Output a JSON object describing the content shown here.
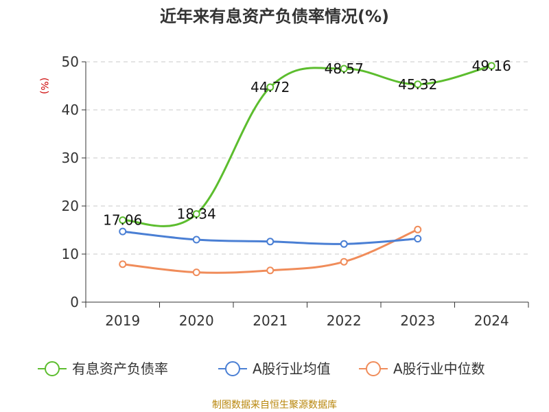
{
  "chart_data": {
    "type": "line",
    "title": "近年来有息资产负债率情况(%)",
    "y_unit": "(%)",
    "categories": [
      "2019",
      "2020",
      "2021",
      "2022",
      "2023",
      "2024"
    ],
    "ylim": [
      0,
      50
    ],
    "y_ticks": [
      0,
      10,
      20,
      30,
      40,
      50
    ],
    "grid": true,
    "legend_position": "bottom",
    "series": [
      {
        "name": "有息资产负债率",
        "color": "#5cbd2e",
        "values": [
          17.06,
          18.34,
          44.72,
          48.57,
          45.32,
          49.16
        ],
        "labels": [
          "17.06",
          "18.34",
          "44.72",
          "48.57",
          "45.32",
          "49.16"
        ]
      },
      {
        "name": "A股行业均值",
        "color": "#4a7fd4",
        "values": [
          14.7,
          13.0,
          12.6,
          12.1,
          13.2,
          null
        ]
      },
      {
        "name": "A股行业中位数",
        "color": "#f08c5a",
        "values": [
          7.9,
          6.2,
          6.6,
          8.4,
          15.1,
          null
        ]
      }
    ]
  },
  "footer": {
    "source": "制图数据来自恒生聚源数据库"
  }
}
